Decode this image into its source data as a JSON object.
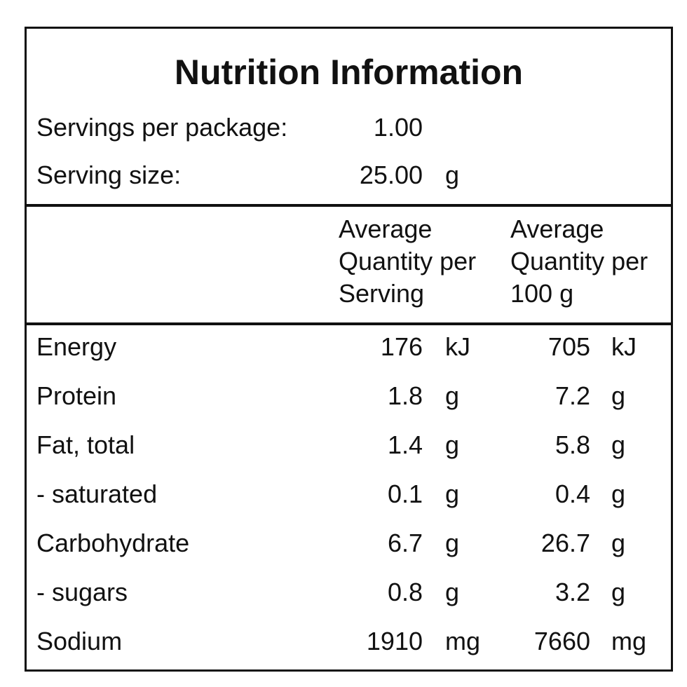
{
  "title": "Nutrition Information",
  "servings": [
    {
      "label": "Servings per package:",
      "value": "1.00"
    },
    {
      "label": "Serving size:",
      "value": "25.00",
      "unit": "g"
    }
  ],
  "header": {
    "per_serving": [
      "Average",
      "Quantity per",
      "Serving"
    ],
    "per_100g": [
      "Average",
      "Quantity per",
      "100 g"
    ]
  },
  "table": {
    "rows": [
      [
        "Energy",
        "176",
        "kJ",
        "705",
        "kJ"
      ],
      [
        "Protein",
        "1.8",
        "g",
        "7.2",
        "g"
      ],
      [
        "Fat, total",
        "1.4",
        "g",
        "5.8",
        "g"
      ],
      [
        "- saturated",
        "0.1",
        "g",
        "0.4",
        "g"
      ],
      [
        "Carbohydrate",
        "6.7",
        "g",
        "26.7",
        "g"
      ],
      [
        "- sugars",
        "0.8",
        "g",
        "3.2",
        "g"
      ],
      [
        "Sodium",
        "1910",
        "mg",
        "7660",
        "mg"
      ]
    ]
  }
}
